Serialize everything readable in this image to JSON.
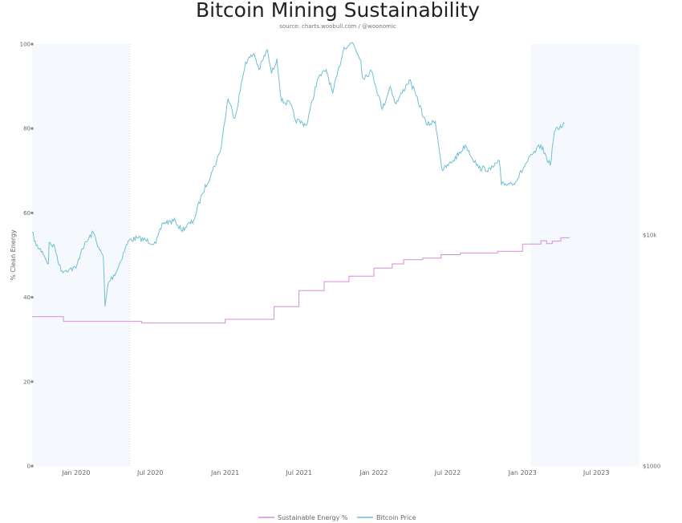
{
  "chart_data": {
    "type": "line",
    "title": "Bitcoin Mining Sustainability",
    "subtitle": "source: charts.woobull.com / @woonomic",
    "ylabel": "% Clean Energy",
    "ylim": [
      0,
      100
    ],
    "y_ticks": [
      "0",
      "20",
      "40",
      "60",
      "80",
      "100"
    ],
    "y_right_ticks": [
      {
        "label": "$10k",
        "value": 10000
      },
      {
        "label": "$1000",
        "value": 1000
      }
    ],
    "x_range": [
      "2019-09-15",
      "2023-10-15"
    ],
    "x_ticks": [
      {
        "label": "Jan 2020",
        "date": "2020-01-01"
      },
      {
        "label": "Jul 2020",
        "date": "2020-07-01"
      },
      {
        "label": "Jan 2021",
        "date": "2021-01-01"
      },
      {
        "label": "Jul 2021",
        "date": "2021-07-01"
      },
      {
        "label": "Jan 2022",
        "date": "2022-01-01"
      },
      {
        "label": "Jul 2022",
        "date": "2022-07-01"
      },
      {
        "label": "Jan 2023",
        "date": "2023-01-01"
      },
      {
        "label": "Jul 2023",
        "date": "2023-07-01"
      }
    ],
    "shaded_periods": [
      {
        "start": "2019-09-15",
        "end": "2020-05-11"
      },
      {
        "start": "2023-01-20",
        "end": "2023-10-15"
      }
    ],
    "event_lines": [
      "2020-05-11"
    ],
    "legend_position": "bottom",
    "series": [
      {
        "name": "Sustainable Energy %",
        "color": "#d98bd9",
        "step": true,
        "points": [
          {
            "x": "2019-09-15",
            "y": 35.4
          },
          {
            "x": "2019-12-01",
            "y": 34.3
          },
          {
            "x": "2020-06-10",
            "y": 33.9
          },
          {
            "x": "2021-01-01",
            "y": 34.8
          },
          {
            "x": "2021-05-01",
            "y": 37.8
          },
          {
            "x": "2021-07-01",
            "y": 41.6
          },
          {
            "x": "2021-09-01",
            "y": 43.7
          },
          {
            "x": "2021-11-01",
            "y": 45.0
          },
          {
            "x": "2022-01-01",
            "y": 46.9
          },
          {
            "x": "2022-02-15",
            "y": 47.9
          },
          {
            "x": "2022-03-15",
            "y": 48.9
          },
          {
            "x": "2022-05-01",
            "y": 49.3
          },
          {
            "x": "2022-06-15",
            "y": 50.1
          },
          {
            "x": "2022-08-01",
            "y": 50.5
          },
          {
            "x": "2022-11-01",
            "y": 50.9
          },
          {
            "x": "2023-01-01",
            "y": 52.6
          },
          {
            "x": "2023-02-15",
            "y": 53.4
          },
          {
            "x": "2023-03-01",
            "y": 52.7
          },
          {
            "x": "2023-03-15",
            "y": 53.3
          },
          {
            "x": "2023-04-05",
            "y": 54.1
          },
          {
            "x": "2023-04-25",
            "y": 54.0
          }
        ]
      },
      {
        "name": "Bitcoin Price",
        "color": "#70bfd4",
        "points": [
          {
            "x": "2019-09-15",
            "y": 10300
          },
          {
            "x": "2019-09-25",
            "y": 9000
          },
          {
            "x": "2019-10-10",
            "y": 8500
          },
          {
            "x": "2019-10-25",
            "y": 7500
          },
          {
            "x": "2019-10-27",
            "y": 9300
          },
          {
            "x": "2019-11-10",
            "y": 8800
          },
          {
            "x": "2019-11-25",
            "y": 7000
          },
          {
            "x": "2019-12-15",
            "y": 7100
          },
          {
            "x": "2020-01-01",
            "y": 7200
          },
          {
            "x": "2020-01-15",
            "y": 8700
          },
          {
            "x": "2020-02-12",
            "y": 10300
          },
          {
            "x": "2020-02-28",
            "y": 8600
          },
          {
            "x": "2020-03-08",
            "y": 8000
          },
          {
            "x": "2020-03-12",
            "y": 4900
          },
          {
            "x": "2020-03-20",
            "y": 6200
          },
          {
            "x": "2020-04-10",
            "y": 7000
          },
          {
            "x": "2020-05-01",
            "y": 8800
          },
          {
            "x": "2020-05-10",
            "y": 9500
          },
          {
            "x": "2020-06-01",
            "y": 9700
          },
          {
            "x": "2020-07-15",
            "y": 9200
          },
          {
            "x": "2020-08-01",
            "y": 11300
          },
          {
            "x": "2020-09-01",
            "y": 11500
          },
          {
            "x": "2020-09-15",
            "y": 10500
          },
          {
            "x": "2020-10-15",
            "y": 11500
          },
          {
            "x": "2020-11-05",
            "y": 15000
          },
          {
            "x": "2020-12-01",
            "y": 19000
          },
          {
            "x": "2020-12-20",
            "y": 23000
          },
          {
            "x": "2021-01-08",
            "y": 39000
          },
          {
            "x": "2021-01-25",
            "y": 32000
          },
          {
            "x": "2021-02-20",
            "y": 56000
          },
          {
            "x": "2021-03-13",
            "y": 61000
          },
          {
            "x": "2021-03-25",
            "y": 52000
          },
          {
            "x": "2021-04-14",
            "y": 63500
          },
          {
            "x": "2021-04-25",
            "y": 50000
          },
          {
            "x": "2021-05-08",
            "y": 58000
          },
          {
            "x": "2021-05-19",
            "y": 38000
          },
          {
            "x": "2021-06-10",
            "y": 37000
          },
          {
            "x": "2021-06-22",
            "y": 31500
          },
          {
            "x": "2021-07-20",
            "y": 30000
          },
          {
            "x": "2021-08-15",
            "y": 47000
          },
          {
            "x": "2021-09-06",
            "y": 52000
          },
          {
            "x": "2021-09-22",
            "y": 41000
          },
          {
            "x": "2021-10-20",
            "y": 65000
          },
          {
            "x": "2021-11-10",
            "y": 68000
          },
          {
            "x": "2021-11-30",
            "y": 57000
          },
          {
            "x": "2021-12-04",
            "y": 48000
          },
          {
            "x": "2021-12-27",
            "y": 51000
          },
          {
            "x": "2022-01-22",
            "y": 35000
          },
          {
            "x": "2022-02-10",
            "y": 44000
          },
          {
            "x": "2022-02-24",
            "y": 37000
          },
          {
            "x": "2022-03-29",
            "y": 47000
          },
          {
            "x": "2022-04-15",
            "y": 40000
          },
          {
            "x": "2022-05-10",
            "y": 30000
          },
          {
            "x": "2022-06-01",
            "y": 31000
          },
          {
            "x": "2022-06-18",
            "y": 19000
          },
          {
            "x": "2022-07-15",
            "y": 21000
          },
          {
            "x": "2022-08-14",
            "y": 24500
          },
          {
            "x": "2022-09-15",
            "y": 19500
          },
          {
            "x": "2022-10-15",
            "y": 19200
          },
          {
            "x": "2022-11-05",
            "y": 21000
          },
          {
            "x": "2022-11-10",
            "y": 16500
          },
          {
            "x": "2022-12-15",
            "y": 17000
          },
          {
            "x": "2023-01-14",
            "y": 21000
          },
          {
            "x": "2023-02-15",
            "y": 24500
          },
          {
            "x": "2023-03-10",
            "y": 20000
          },
          {
            "x": "2023-03-20",
            "y": 28000
          },
          {
            "x": "2023-04-14",
            "y": 30500
          }
        ]
      }
    ]
  }
}
